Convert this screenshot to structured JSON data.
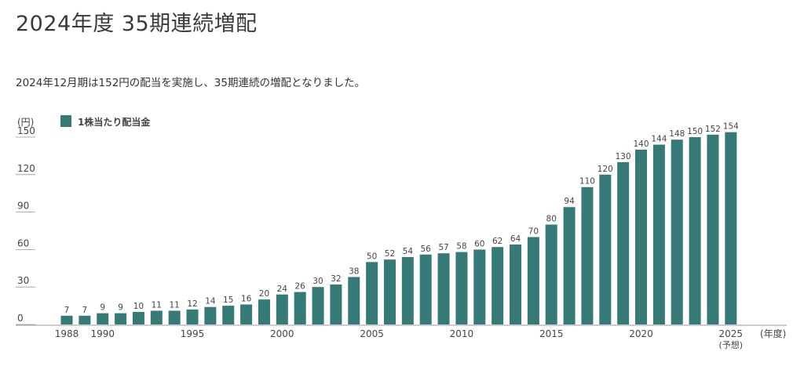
{
  "page": {
    "title": "2024年度 35期連続増配",
    "description": "2024年12月期は152円の配当を実施し、35期連続の増配となりました。"
  },
  "chart_data": {
    "type": "bar",
    "title": "",
    "ylabel": "(円)",
    "xlabel": "(年度)",
    "legend": {
      "label": "1株当たり配当金",
      "placement": "top-left"
    },
    "ylim": [
      0,
      150
    ],
    "yticks": [
      0,
      30,
      60,
      90,
      120,
      150
    ],
    "categories": [
      "1988",
      "1989",
      "1990",
      "1991",
      "1992",
      "1993",
      "1994",
      "1995",
      "1996",
      "1997",
      "1998",
      "1999",
      "2000",
      "2001",
      "2002",
      "2003",
      "2004",
      "2005",
      "2006",
      "2007",
      "2008",
      "2009",
      "2010",
      "2011",
      "2012",
      "2013",
      "2014",
      "2015",
      "2016",
      "2017",
      "2018",
      "2019",
      "2020",
      "2021",
      "2022",
      "2023",
      "2024",
      "2025"
    ],
    "values": [
      7,
      7,
      9,
      9,
      10,
      11,
      11,
      12,
      14,
      15,
      16,
      20,
      24,
      26,
      30,
      32,
      38,
      50,
      52,
      54,
      56,
      57,
      58,
      60,
      62,
      64,
      70,
      80,
      94,
      110,
      120,
      130,
      140,
      144,
      148,
      150,
      152,
      154
    ],
    "xtick_labels": [
      {
        "category": "1988",
        "label": "1988"
      },
      {
        "category": "1990",
        "label": "1990"
      },
      {
        "category": "1995",
        "label": "1995"
      },
      {
        "category": "2000",
        "label": "2000"
      },
      {
        "category": "2005",
        "label": "2005"
      },
      {
        "category": "2010",
        "label": "2010"
      },
      {
        "category": "2015",
        "label": "2015"
      },
      {
        "category": "2020",
        "label": "2020"
      },
      {
        "category": "2025",
        "label": "2025",
        "sublabel": "(予想)"
      }
    ],
    "grid": false,
    "colors": {
      "bar": "#367a78",
      "axis": "#999999",
      "text": "#444444"
    }
  }
}
